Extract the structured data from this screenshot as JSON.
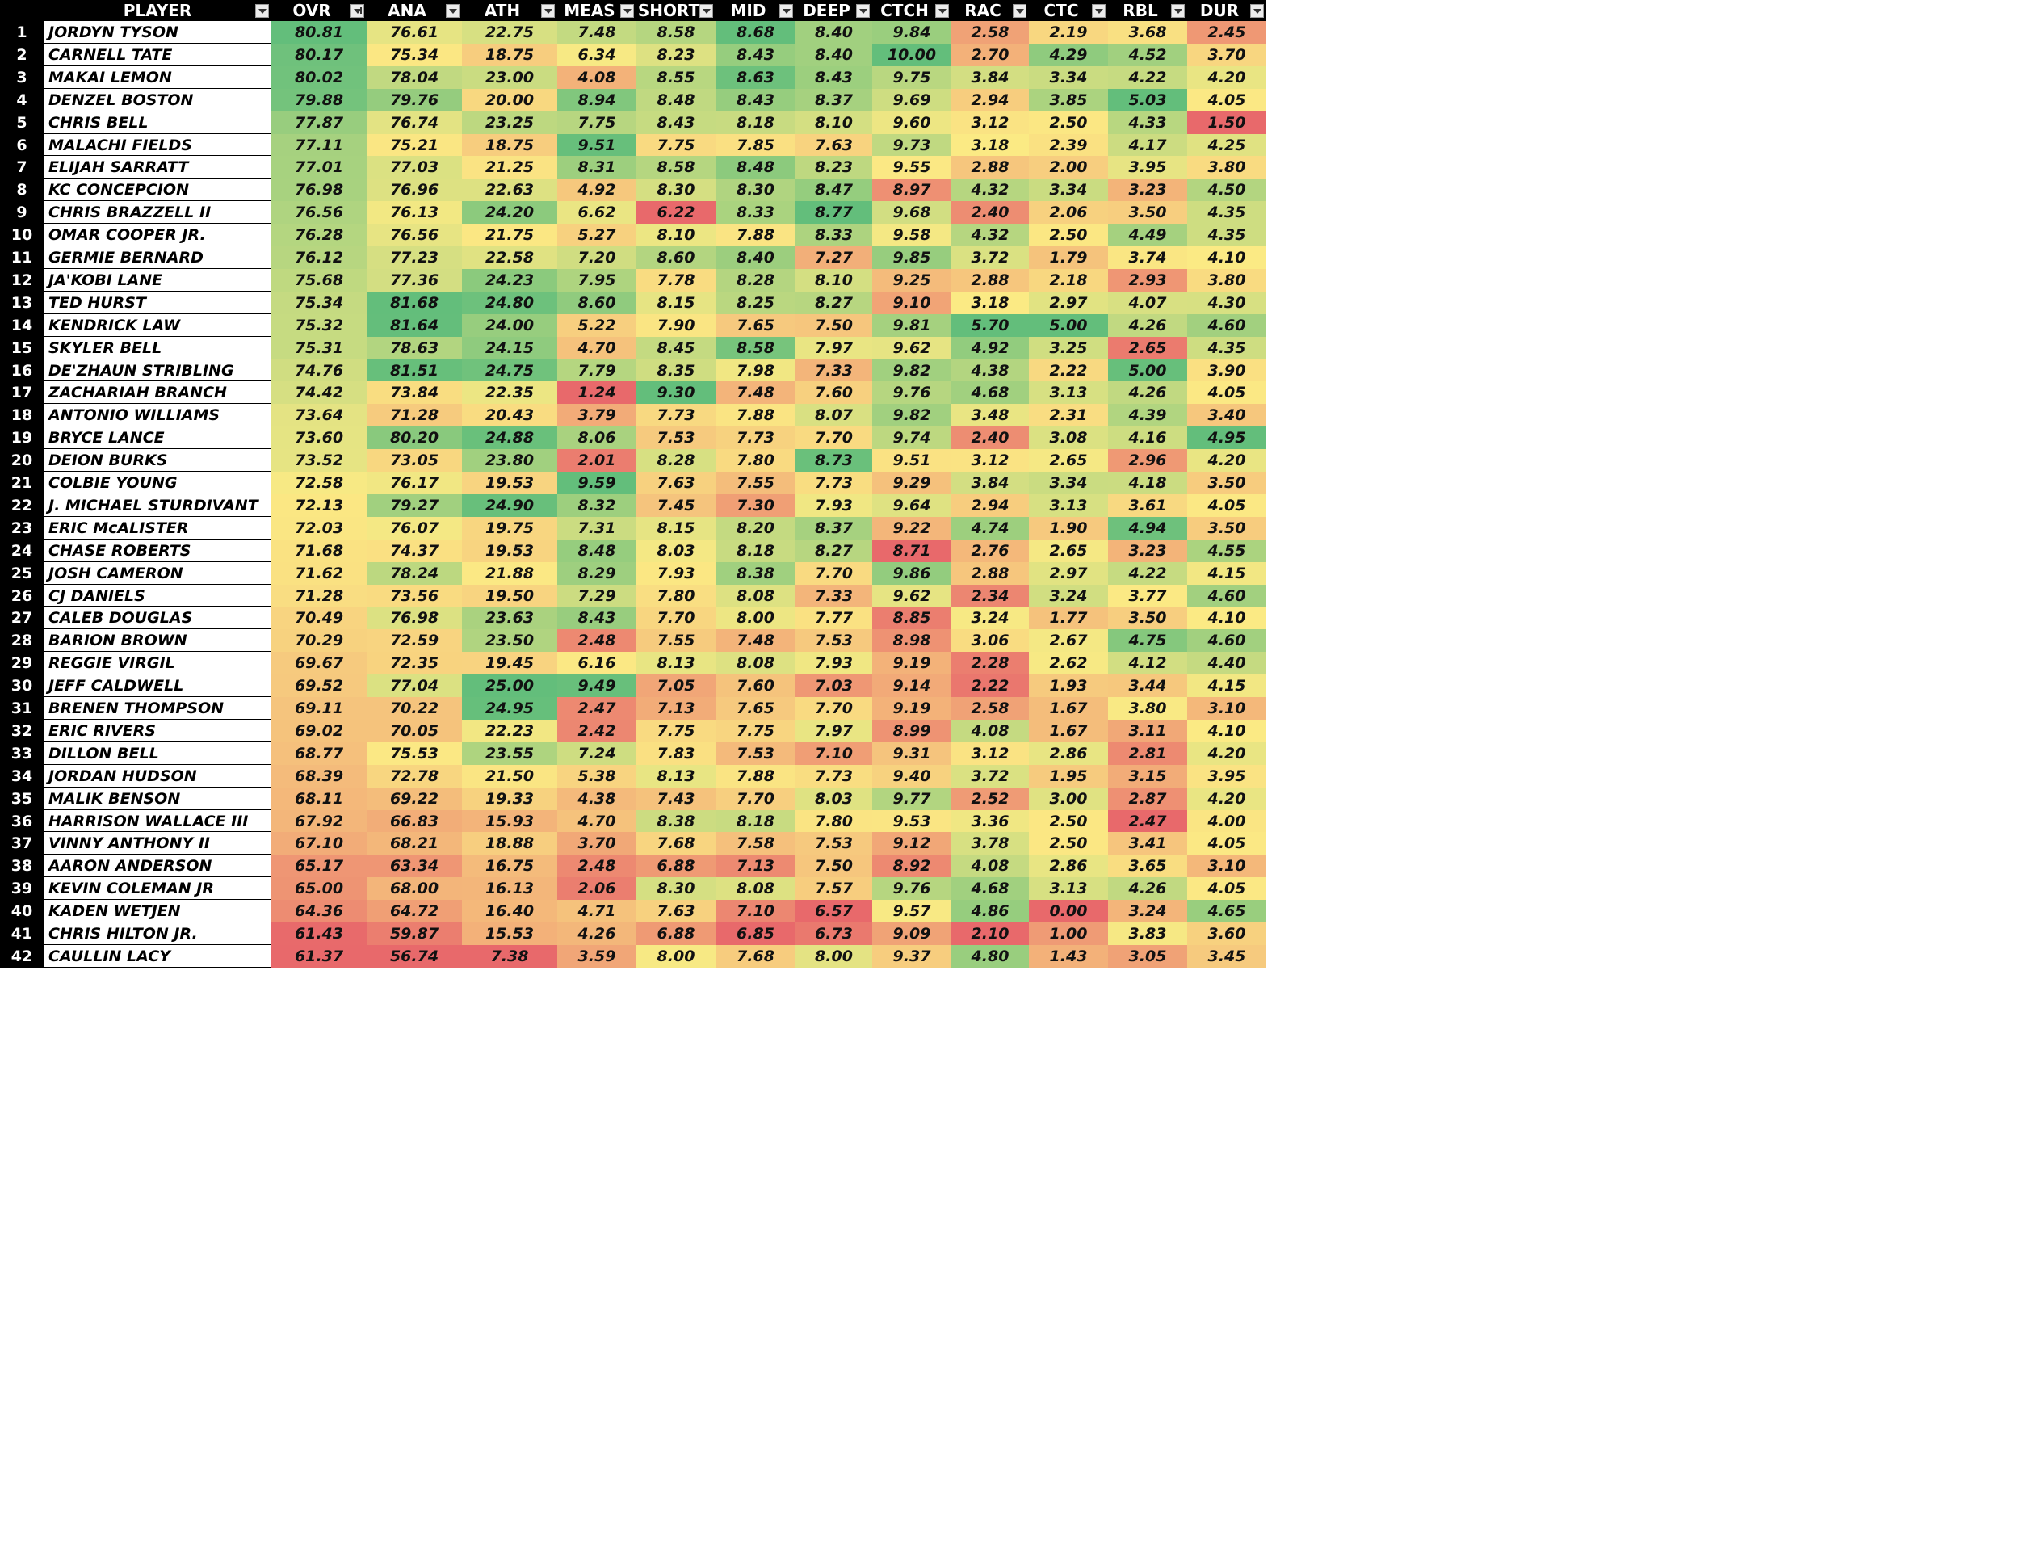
{
  "sheet": {
    "columns": [
      {
        "key": "player",
        "label": "PLAYER",
        "filter_icon": "filter-dropdown-icon"
      },
      {
        "key": "ovr",
        "label": "OVR",
        "filter_icon": "sort-descending-filter-icon"
      },
      {
        "key": "ana",
        "label": "ANA",
        "filter_icon": "filter-dropdown-icon"
      },
      {
        "key": "ath",
        "label": "ATH",
        "filter_icon": "filter-dropdown-icon"
      },
      {
        "key": "meas",
        "label": "MEAS",
        "filter_icon": "filter-dropdown-icon"
      },
      {
        "key": "short",
        "label": "SHORT",
        "filter_icon": "filter-dropdown-icon"
      },
      {
        "key": "mid",
        "label": "MID",
        "filter_icon": "filter-dropdown-icon"
      },
      {
        "key": "deep",
        "label": "DEEP",
        "filter_icon": "filter-dropdown-icon"
      },
      {
        "key": "ctch",
        "label": "CTCH",
        "filter_icon": "filter-dropdown-icon"
      },
      {
        "key": "rac",
        "label": "RAC",
        "filter_icon": "filter-dropdown-icon"
      },
      {
        "key": "ctc",
        "label": "CTC",
        "filter_icon": "filter-dropdown-icon"
      },
      {
        "key": "rbl",
        "label": "RBL",
        "filter_icon": "filter-dropdown-icon"
      },
      {
        "key": "dur",
        "label": "DUR",
        "filter_icon": "filter-dropdown-icon"
      }
    ],
    "color_scale": {
      "low": "#e8696b",
      "mid": "#fbea84",
      "high": "#63be7b"
    },
    "rows": [
      {
        "rank": "1",
        "player": "JORDYN TYSON",
        "values": [
          "80.81",
          "76.61",
          "22.75",
          "7.48",
          "8.58",
          "8.68",
          "8.40",
          "9.84",
          "2.58",
          "2.19",
          "3.68",
          "2.45"
        ]
      },
      {
        "rank": "2",
        "player": "CARNELL TATE",
        "values": [
          "80.17",
          "75.34",
          "18.75",
          "6.34",
          "8.23",
          "8.43",
          "8.40",
          "10.00",
          "2.70",
          "4.29",
          "4.52",
          "3.70"
        ]
      },
      {
        "rank": "3",
        "player": "MAKAI LEMON",
        "values": [
          "80.02",
          "78.04",
          "23.00",
          "4.08",
          "8.55",
          "8.63",
          "8.43",
          "9.75",
          "3.84",
          "3.34",
          "4.22",
          "4.20"
        ]
      },
      {
        "rank": "4",
        "player": "DENZEL BOSTON",
        "values": [
          "79.88",
          "79.76",
          "20.00",
          "8.94",
          "8.48",
          "8.43",
          "8.37",
          "9.69",
          "2.94",
          "3.85",
          "5.03",
          "4.05"
        ]
      },
      {
        "rank": "5",
        "player": "CHRIS BELL",
        "values": [
          "77.87",
          "76.74",
          "23.25",
          "7.75",
          "8.43",
          "8.18",
          "8.10",
          "9.60",
          "3.12",
          "2.50",
          "4.33",
          "1.50"
        ]
      },
      {
        "rank": "6",
        "player": "MALACHI FIELDS",
        "values": [
          "77.11",
          "75.21",
          "18.75",
          "9.51",
          "7.75",
          "7.85",
          "7.63",
          "9.73",
          "3.18",
          "2.39",
          "4.17",
          "4.25"
        ]
      },
      {
        "rank": "7",
        "player": "ELIJAH SARRATT",
        "values": [
          "77.01",
          "77.03",
          "21.25",
          "8.31",
          "8.58",
          "8.48",
          "8.23",
          "9.55",
          "2.88",
          "2.00",
          "3.95",
          "3.80"
        ]
      },
      {
        "rank": "8",
        "player": "KC CONCEPCION",
        "values": [
          "76.98",
          "76.96",
          "22.63",
          "4.92",
          "8.30",
          "8.30",
          "8.47",
          "8.97",
          "4.32",
          "3.34",
          "3.23",
          "4.50"
        ]
      },
      {
        "rank": "9",
        "player": "CHRIS BRAZZELL II",
        "values": [
          "76.56",
          "76.13",
          "24.20",
          "6.62",
          "6.22",
          "8.33",
          "8.77",
          "9.68",
          "2.40",
          "2.06",
          "3.50",
          "4.35"
        ]
      },
      {
        "rank": "10",
        "player": "OMAR COOPER JR.",
        "values": [
          "76.28",
          "76.56",
          "21.75",
          "5.27",
          "8.10",
          "7.88",
          "8.33",
          "9.58",
          "4.32",
          "2.50",
          "4.49",
          "4.35"
        ]
      },
      {
        "rank": "11",
        "player": "GERMIE BERNARD",
        "values": [
          "76.12",
          "77.23",
          "22.58",
          "7.20",
          "8.60",
          "8.40",
          "7.27",
          "9.85",
          "3.72",
          "1.79",
          "3.74",
          "4.10"
        ]
      },
      {
        "rank": "12",
        "player": "JA'KOBI LANE",
        "values": [
          "75.68",
          "77.36",
          "24.23",
          "7.95",
          "7.78",
          "8.28",
          "8.10",
          "9.25",
          "2.88",
          "2.18",
          "2.93",
          "3.80"
        ]
      },
      {
        "rank": "13",
        "player": "TED HURST",
        "values": [
          "75.34",
          "81.68",
          "24.80",
          "8.60",
          "8.15",
          "8.25",
          "8.27",
          "9.10",
          "3.18",
          "2.97",
          "4.07",
          "4.30"
        ]
      },
      {
        "rank": "14",
        "player": "KENDRICK LAW",
        "values": [
          "75.32",
          "81.64",
          "24.00",
          "5.22",
          "7.90",
          "7.65",
          "7.50",
          "9.81",
          "5.70",
          "5.00",
          "4.26",
          "4.60"
        ]
      },
      {
        "rank": "15",
        "player": "SKYLER BELL",
        "values": [
          "75.31",
          "78.63",
          "24.15",
          "4.70",
          "8.45",
          "8.58",
          "7.97",
          "9.62",
          "4.92",
          "3.25",
          "2.65",
          "4.35"
        ]
      },
      {
        "rank": "16",
        "player": "DE'ZHAUN STRIBLING",
        "values": [
          "74.76",
          "81.51",
          "24.75",
          "7.79",
          "8.35",
          "7.98",
          "7.33",
          "9.82",
          "4.38",
          "2.22",
          "5.00",
          "3.90"
        ]
      },
      {
        "rank": "17",
        "player": "ZACHARIAH BRANCH",
        "values": [
          "74.42",
          "73.84",
          "22.35",
          "1.24",
          "9.30",
          "7.48",
          "7.60",
          "9.76",
          "4.68",
          "3.13",
          "4.26",
          "4.05"
        ]
      },
      {
        "rank": "18",
        "player": "ANTONIO WILLIAMS",
        "values": [
          "73.64",
          "71.28",
          "20.43",
          "3.79",
          "7.73",
          "7.88",
          "8.07",
          "9.82",
          "3.48",
          "2.31",
          "4.39",
          "3.40"
        ]
      },
      {
        "rank": "19",
        "player": "BRYCE LANCE",
        "values": [
          "73.60",
          "80.20",
          "24.88",
          "8.06",
          "7.53",
          "7.73",
          "7.70",
          "9.74",
          "2.40",
          "3.08",
          "4.16",
          "4.95"
        ]
      },
      {
        "rank": "20",
        "player": "DEION BURKS",
        "values": [
          "73.52",
          "73.05",
          "23.80",
          "2.01",
          "8.28",
          "7.80",
          "8.73",
          "9.51",
          "3.12",
          "2.65",
          "2.96",
          "4.20"
        ]
      },
      {
        "rank": "21",
        "player": "COLBIE YOUNG",
        "values": [
          "72.58",
          "76.17",
          "19.53",
          "9.59",
          "7.63",
          "7.55",
          "7.73",
          "9.29",
          "3.84",
          "3.34",
          "4.18",
          "3.50"
        ]
      },
      {
        "rank": "22",
        "player": "J. MICHAEL STURDIVANT",
        "values": [
          "72.13",
          "79.27",
          "24.90",
          "8.32",
          "7.45",
          "7.30",
          "7.93",
          "9.64",
          "2.94",
          "3.13",
          "3.61",
          "4.05"
        ]
      },
      {
        "rank": "23",
        "player": "ERIC McALISTER",
        "values": [
          "72.03",
          "76.07",
          "19.75",
          "7.31",
          "8.15",
          "8.20",
          "8.37",
          "9.22",
          "4.74",
          "1.90",
          "4.94",
          "3.50"
        ]
      },
      {
        "rank": "24",
        "player": "CHASE ROBERTS",
        "values": [
          "71.68",
          "74.37",
          "19.53",
          "8.48",
          "8.03",
          "8.18",
          "8.27",
          "8.71",
          "2.76",
          "2.65",
          "3.23",
          "4.55"
        ]
      },
      {
        "rank": "25",
        "player": "JOSH CAMERON",
        "values": [
          "71.62",
          "78.24",
          "21.88",
          "8.29",
          "7.93",
          "8.38",
          "7.70",
          "9.86",
          "2.88",
          "2.97",
          "4.22",
          "4.15"
        ]
      },
      {
        "rank": "26",
        "player": "CJ DANIELS",
        "values": [
          "71.28",
          "73.56",
          "19.50",
          "7.29",
          "7.80",
          "8.08",
          "7.33",
          "9.62",
          "2.34",
          "3.24",
          "3.77",
          "4.60"
        ]
      },
      {
        "rank": "27",
        "player": "CALEB DOUGLAS",
        "values": [
          "70.49",
          "76.98",
          "23.63",
          "8.43",
          "7.70",
          "8.00",
          "7.77",
          "8.85",
          "3.24",
          "1.77",
          "3.50",
          "4.10"
        ]
      },
      {
        "rank": "28",
        "player": "BARION BROWN",
        "values": [
          "70.29",
          "72.59",
          "23.50",
          "2.48",
          "7.55",
          "7.48",
          "7.53",
          "8.98",
          "3.06",
          "2.67",
          "4.75",
          "4.60"
        ]
      },
      {
        "rank": "29",
        "player": "REGGIE VIRGIL",
        "values": [
          "69.67",
          "72.35",
          "19.45",
          "6.16",
          "8.13",
          "8.08",
          "7.93",
          "9.19",
          "2.28",
          "2.62",
          "4.12",
          "4.40"
        ]
      },
      {
        "rank": "30",
        "player": "JEFF CALDWELL",
        "values": [
          "69.52",
          "77.04",
          "25.00",
          "9.49",
          "7.05",
          "7.60",
          "7.03",
          "9.14",
          "2.22",
          "1.93",
          "3.44",
          "4.15"
        ]
      },
      {
        "rank": "31",
        "player": "BRENEN THOMPSON",
        "values": [
          "69.11",
          "70.22",
          "24.95",
          "2.47",
          "7.13",
          "7.65",
          "7.70",
          "9.19",
          "2.58",
          "1.67",
          "3.80",
          "3.10"
        ]
      },
      {
        "rank": "32",
        "player": "ERIC RIVERS",
        "values": [
          "69.02",
          "70.05",
          "22.23",
          "2.42",
          "7.75",
          "7.75",
          "7.97",
          "8.99",
          "4.08",
          "1.67",
          "3.11",
          "4.10"
        ]
      },
      {
        "rank": "33",
        "player": "DILLON BELL",
        "values": [
          "68.77",
          "75.53",
          "23.55",
          "7.24",
          "7.83",
          "7.53",
          "7.10",
          "9.31",
          "3.12",
          "2.86",
          "2.81",
          "4.20"
        ]
      },
      {
        "rank": "34",
        "player": "JORDAN HUDSON",
        "values": [
          "68.39",
          "72.78",
          "21.50",
          "5.38",
          "8.13",
          "7.88",
          "7.73",
          "9.40",
          "3.72",
          "1.95",
          "3.15",
          "3.95"
        ]
      },
      {
        "rank": "35",
        "player": "MALIK BENSON",
        "values": [
          "68.11",
          "69.22",
          "19.33",
          "4.38",
          "7.43",
          "7.70",
          "8.03",
          "9.77",
          "2.52",
          "3.00",
          "2.87",
          "4.20"
        ]
      },
      {
        "rank": "36",
        "player": "HARRISON WALLACE III",
        "values": [
          "67.92",
          "66.83",
          "15.93",
          "4.70",
          "8.38",
          "8.18",
          "7.80",
          "9.53",
          "3.36",
          "2.50",
          "2.47",
          "4.00"
        ]
      },
      {
        "rank": "37",
        "player": "VINNY ANTHONY II",
        "values": [
          "67.10",
          "68.21",
          "18.88",
          "3.70",
          "7.68",
          "7.58",
          "7.53",
          "9.12",
          "3.78",
          "2.50",
          "3.41",
          "4.05"
        ]
      },
      {
        "rank": "38",
        "player": "AARON ANDERSON",
        "values": [
          "65.17",
          "63.34",
          "16.75",
          "2.48",
          "6.88",
          "7.13",
          "7.50",
          "8.92",
          "4.08",
          "2.86",
          "3.65",
          "3.10"
        ]
      },
      {
        "rank": "39",
        "player": "KEVIN COLEMAN JR",
        "values": [
          "65.00",
          "68.00",
          "16.13",
          "2.06",
          "8.30",
          "8.08",
          "7.57",
          "9.76",
          "4.68",
          "3.13",
          "4.26",
          "4.05"
        ]
      },
      {
        "rank": "40",
        "player": "KADEN WETJEN",
        "values": [
          "64.36",
          "64.72",
          "16.40",
          "4.71",
          "7.63",
          "7.10",
          "6.57",
          "9.57",
          "4.86",
          "0.00",
          "3.24",
          "4.65"
        ]
      },
      {
        "rank": "41",
        "player": "CHRIS HILTON JR.",
        "values": [
          "61.43",
          "59.87",
          "15.53",
          "4.26",
          "6.88",
          "6.85",
          "6.73",
          "9.09",
          "2.10",
          "1.00",
          "3.83",
          "3.60"
        ]
      },
      {
        "rank": "42",
        "player": "CAULLIN LACY",
        "values": [
          "61.37",
          "56.74",
          "7.38",
          "3.59",
          "8.00",
          "7.68",
          "8.00",
          "9.37",
          "4.80",
          "1.43",
          "3.05",
          "3.45"
        ]
      }
    ]
  }
}
